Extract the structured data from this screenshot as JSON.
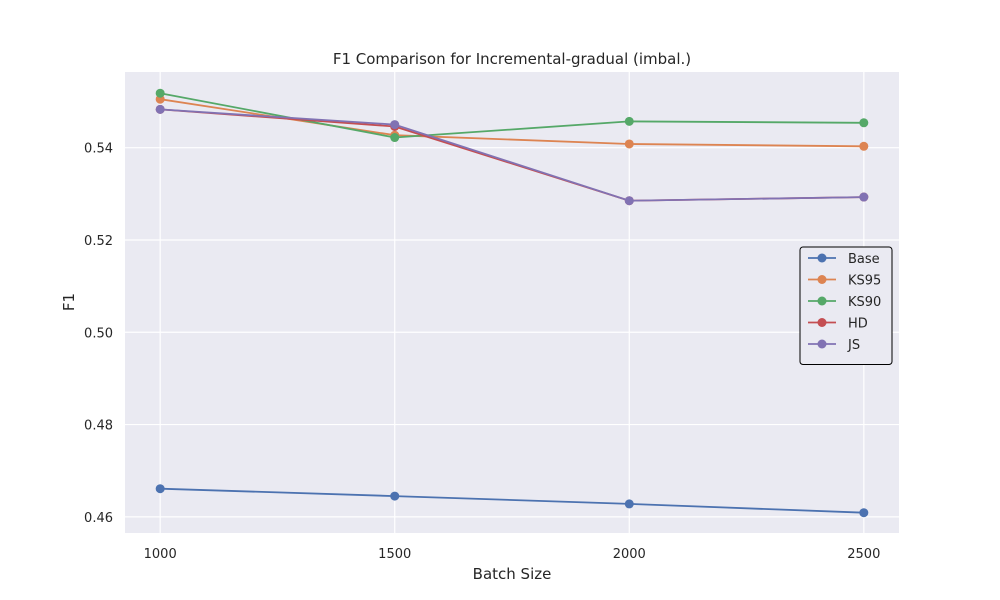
{
  "chart_data": {
    "type": "line",
    "title": "F1 Comparison for Incremental-gradual (imbal.)",
    "xlabel": "Batch Size",
    "ylabel": "F1",
    "x": [
      1000,
      1500,
      2000,
      2500
    ],
    "x_ticks": [
      "1000",
      "1500",
      "2000",
      "2500"
    ],
    "y_ticks": [
      "0.46",
      "0.48",
      "0.50",
      "0.52",
      "0.54"
    ],
    "y_tick_values": [
      0.46,
      0.48,
      0.5,
      0.52,
      0.54
    ],
    "xlim": [
      925,
      2575
    ],
    "ylim": [
      0.4565,
      0.5564
    ],
    "grid": true,
    "legend_position": "center-right",
    "series": [
      {
        "name": "Base",
        "color": "#4c72b0",
        "values": [
          0.4661,
          0.4645,
          0.4628,
          0.4609
        ]
      },
      {
        "name": "KS95",
        "color": "#dd8452",
        "values": [
          0.5505,
          0.5427,
          0.5408,
          0.5403
        ]
      },
      {
        "name": "KS90",
        "color": "#55a868",
        "values": [
          0.5518,
          0.5422,
          0.5457,
          0.5454
        ]
      },
      {
        "name": "HD",
        "color": "#c44e52",
        "values": [
          0.5483,
          0.5446,
          0.5285,
          0.5293
        ]
      },
      {
        "name": "JS",
        "color": "#8172b3",
        "values": [
          0.5483,
          0.545,
          0.5285,
          0.5293
        ]
      }
    ]
  }
}
